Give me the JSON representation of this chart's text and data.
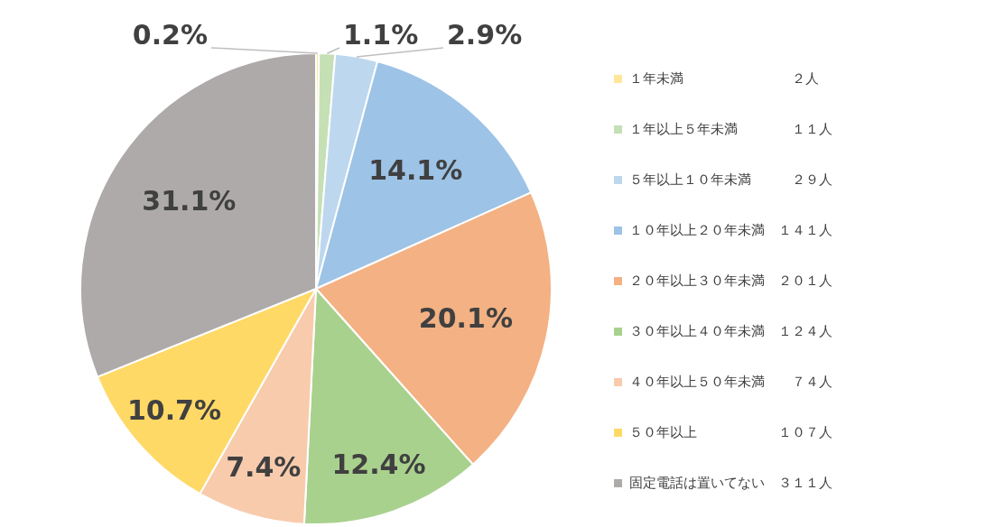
{
  "chart_data": {
    "type": "pie",
    "legend": "right",
    "categories": [
      "１年未満　　　　　　　　２人",
      "１年以上５年未満　　　　１１人",
      "５年以上１０年未満　　　２９人",
      "１０年以上２０年未満　１４１人",
      "２０年以上３０年未満　２０１人",
      "３０年以上４０年未満　１２４人",
      "４０年以上５０年未満　　７４人",
      "５０年以上　　　　　　１０７人",
      "固定電話は置いてない　３１１人"
    ],
    "values": [
      0.2,
      1.1,
      2.9,
      14.1,
      20.1,
      12.4,
      7.4,
      10.7,
      31.1
    ],
    "value_labels": [
      "0.2%",
      "1.1%",
      "2.9%",
      "14.1%",
      "20.1%",
      "12.4%",
      "7.4%",
      "10.7%",
      "31.1%"
    ],
    "colors": [
      "#ffe699",
      "#c5e0b4",
      "#bdd7ee",
      "#9dc3e6",
      "#f4b183",
      "#a9d18e",
      "#f8cbad",
      "#ffd966",
      "#aeaaaa"
    ]
  }
}
